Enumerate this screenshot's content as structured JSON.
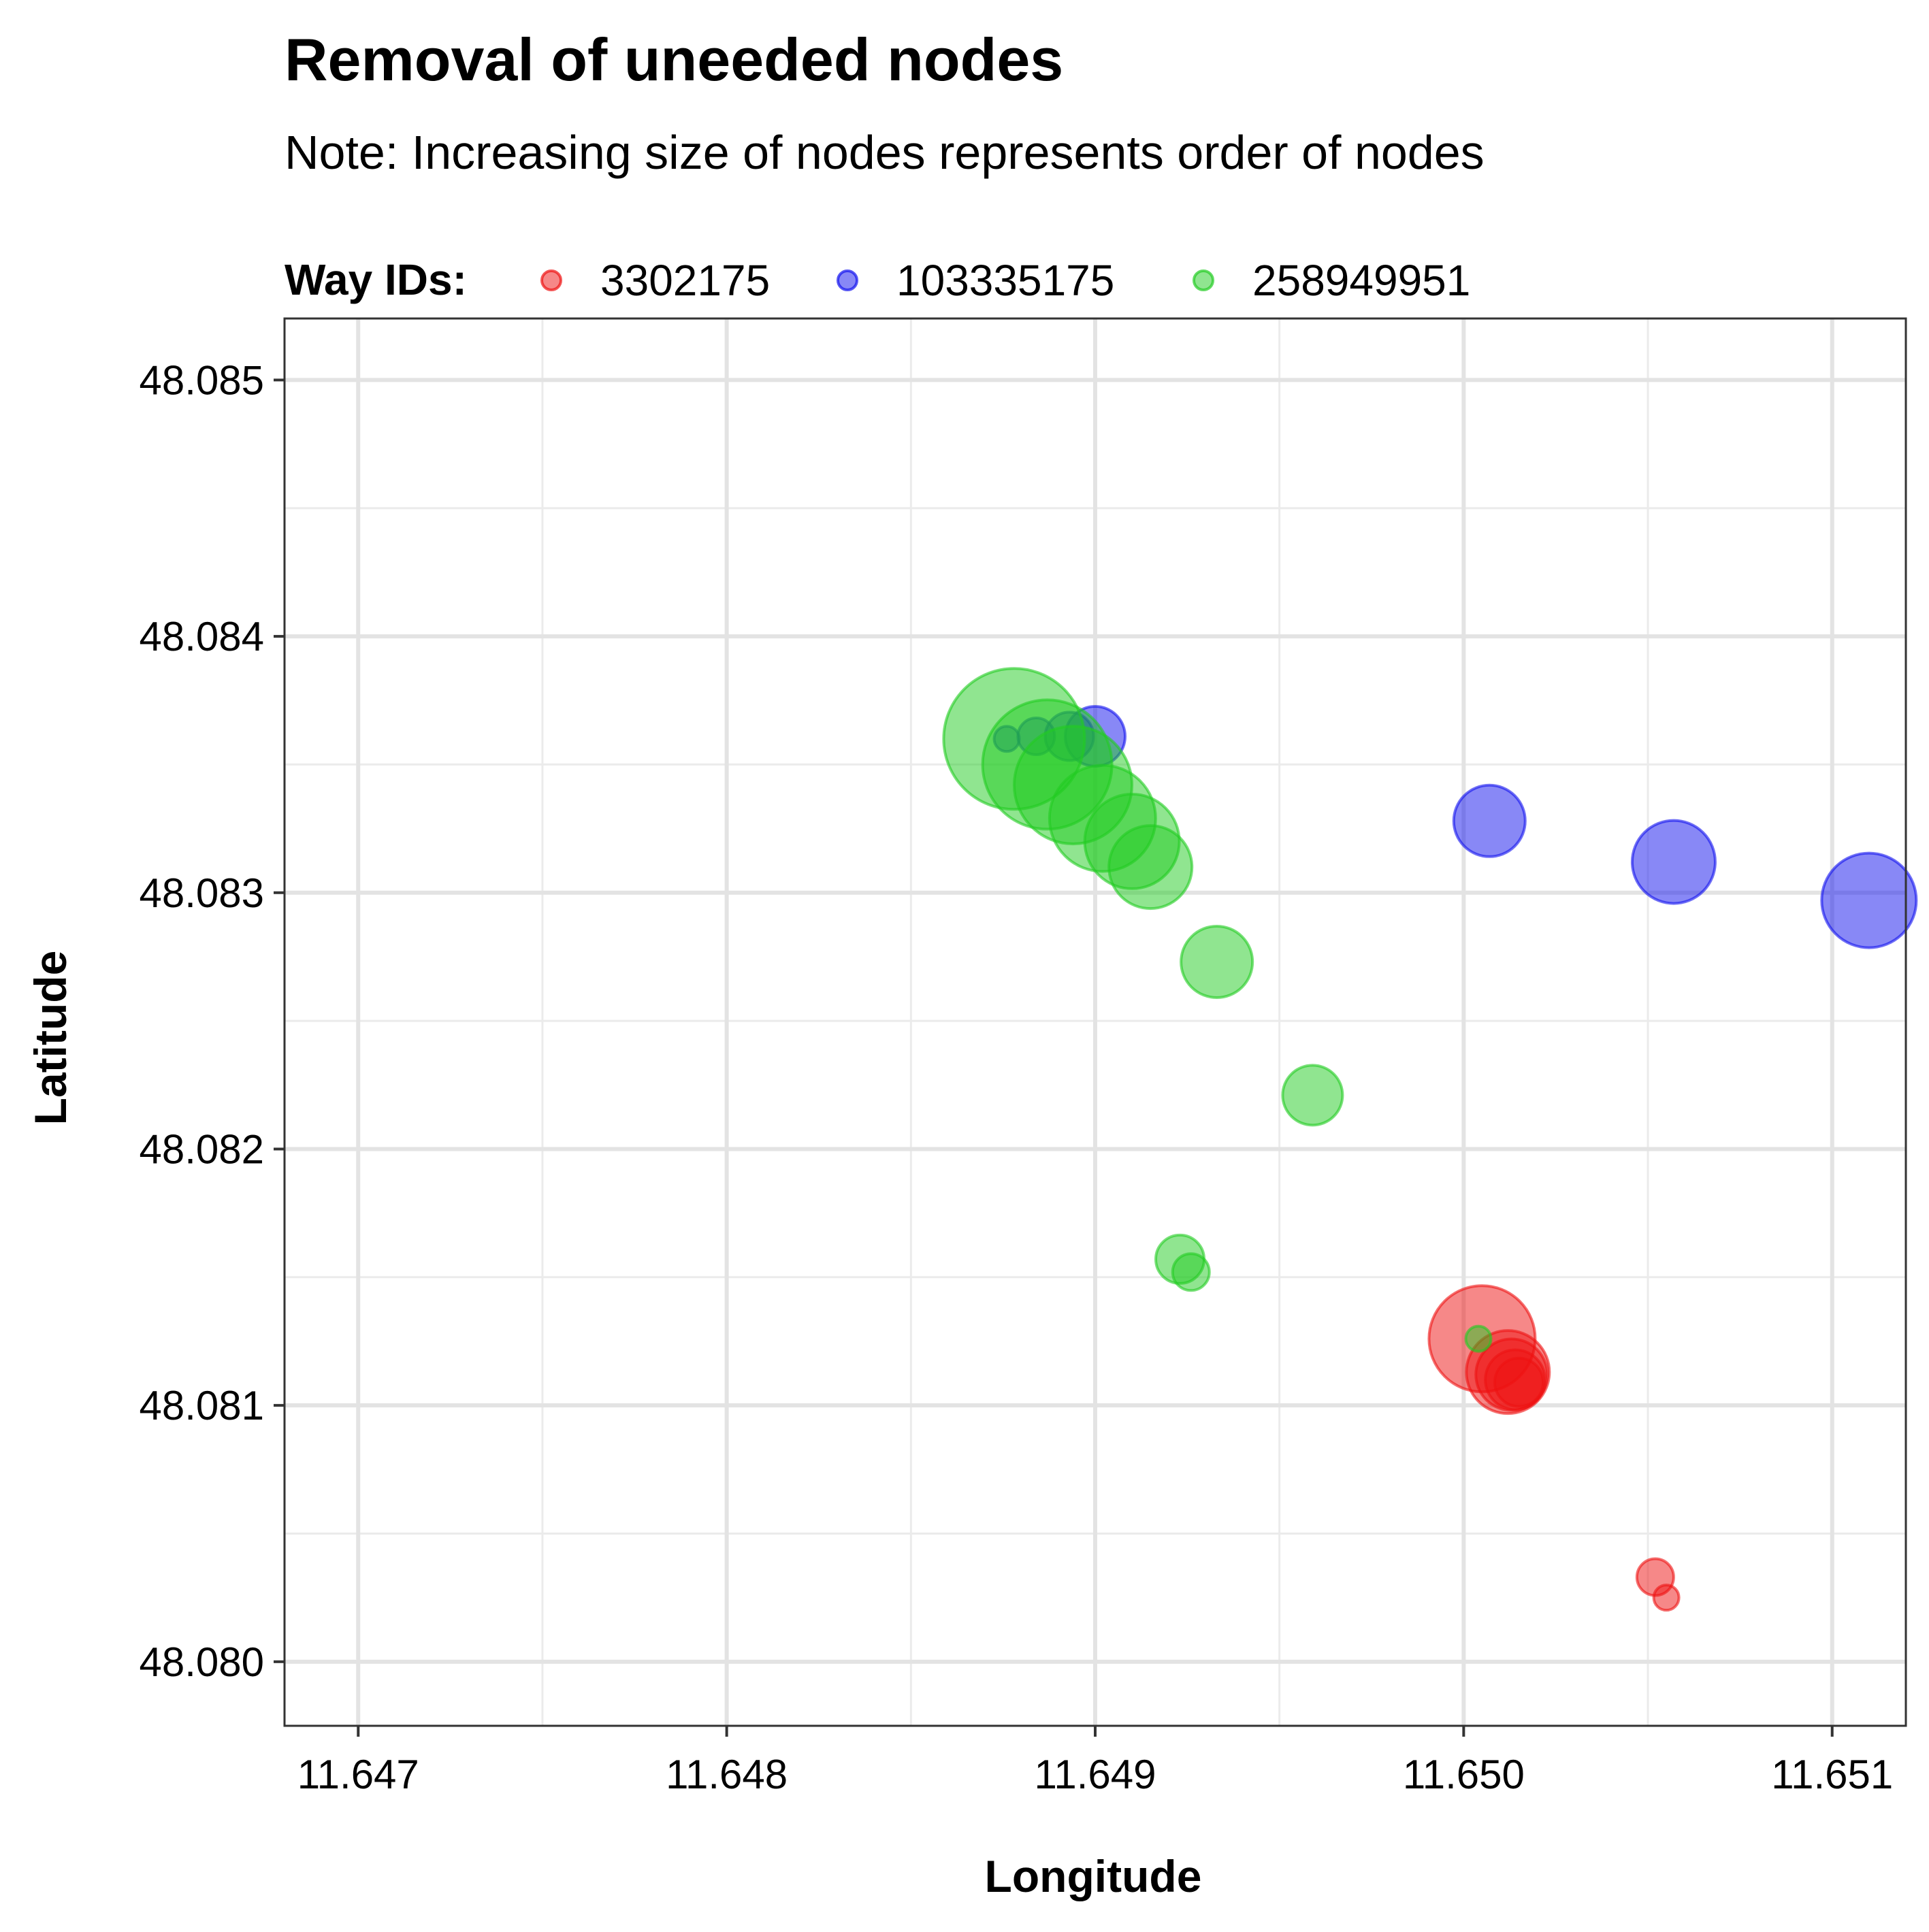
{
  "chart_data": {
    "type": "scatter",
    "title": "Removal of uneeded nodes",
    "subtitle": "Note: Increasing size of nodes represents order of nodes",
    "xlabel": "Longitude",
    "ylabel": "Latitude",
    "xlim": [
      11.6468,
      11.6512
    ],
    "ylim": [
      48.07975,
      48.08524
    ],
    "x_ticks": [
      "11.647",
      "11.648",
      "11.649",
      "11.650",
      "11.651"
    ],
    "y_ticks": [
      "48.080",
      "48.081",
      "48.082",
      "48.083",
      "48.084",
      "48.085"
    ],
    "grid": true,
    "legend": {
      "title": "Way IDs:",
      "placement": "top-left",
      "entries": [
        "3302175",
        "103335175",
        "258949951"
      ]
    },
    "colors": {
      "3302175": "#ee1111",
      "103335175": "#1111ee",
      "258949951": "#22cc22"
    },
    "series": [
      {
        "name": "3302175",
        "points": [
          {
            "x": 11.65055,
            "y": 48.08025,
            "order": 1
          },
          {
            "x": 11.65052,
            "y": 48.08033,
            "order": 2
          },
          {
            "x": 11.65015,
            "y": 48.08109,
            "order": 3
          },
          {
            "x": 11.65014,
            "y": 48.0811,
            "order": 4
          },
          {
            "x": 11.65013,
            "y": 48.08112,
            "order": 5
          },
          {
            "x": 11.65012,
            "y": 48.08113,
            "order": 6
          },
          {
            "x": 11.65005,
            "y": 48.08126,
            "order": 8
          }
        ]
      },
      {
        "name": "103335175",
        "points": [
          {
            "x": 11.64876,
            "y": 48.0836,
            "order": 1
          },
          {
            "x": 11.64884,
            "y": 48.08361,
            "order": 2
          },
          {
            "x": 11.64893,
            "y": 48.08361,
            "order": 3
          },
          {
            "x": 11.649,
            "y": 48.08361,
            "order": 4
          },
          {
            "x": 11.65007,
            "y": 48.08328,
            "order": 5
          },
          {
            "x": 11.65057,
            "y": 48.08312,
            "order": 6
          },
          {
            "x": 11.6511,
            "y": 48.08297,
            "order": 7
          }
        ]
      },
      {
        "name": "258949951",
        "points": [
          {
            "x": 11.65004,
            "y": 48.08126,
            "order": 1
          },
          {
            "x": 11.64926,
            "y": 48.08152,
            "order": 2
          },
          {
            "x": 11.64923,
            "y": 48.08157,
            "order": 3
          },
          {
            "x": 11.64959,
            "y": 48.08221,
            "order": 4
          },
          {
            "x": 11.64933,
            "y": 48.08273,
            "order": 5
          },
          {
            "x": 11.64915,
            "y": 48.0831,
            "order": 6
          },
          {
            "x": 11.6491,
            "y": 48.0832,
            "order": 7
          },
          {
            "x": 11.64902,
            "y": 48.08329,
            "order": 8
          },
          {
            "x": 11.64894,
            "y": 48.08342,
            "order": 9
          },
          {
            "x": 11.64887,
            "y": 48.0835,
            "order": 10
          },
          {
            "x": 11.64878,
            "y": 48.0836,
            "order": 11
          }
        ]
      }
    ]
  }
}
